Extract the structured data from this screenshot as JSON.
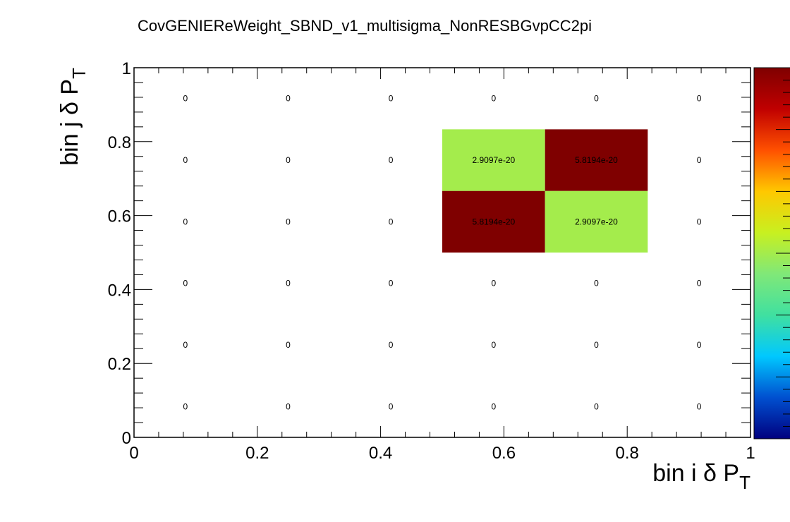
{
  "chart_data": {
    "type": "heatmap",
    "title": "CovGENIEReWeight_SBND_v1_multisigma_NonRESBGvpCC2pi",
    "xlabel": {
      "text": "bin i δ P",
      "sub": "T"
    },
    "ylabel": {
      "text": "bin j δ P",
      "sub": "T"
    },
    "xlim": [
      0,
      1
    ],
    "ylim": [
      0,
      1
    ],
    "x_ticks": [
      "0",
      "0.2",
      "0.4",
      "0.6",
      "0.8",
      "1"
    ],
    "y_ticks": [
      "0",
      "0.2",
      "0.4",
      "0.6",
      "0.8",
      "1"
    ],
    "x_bins": [
      0,
      0.1667,
      0.3333,
      0.5,
      0.6667,
      0.8333,
      1
    ],
    "y_bins": [
      0,
      0.1667,
      0.3333,
      0.5,
      0.6667,
      0.8333,
      1
    ],
    "values": [
      [
        "0",
        "0",
        "0",
        "0",
        "0",
        "0"
      ],
      [
        "0",
        "0",
        "0",
        "0",
        "0",
        "0"
      ],
      [
        "0",
        "0",
        "0",
        "0",
        "0",
        "0"
      ],
      [
        "0",
        "0",
        "0",
        "5.8194e-20",
        "2.9097e-20",
        "0"
      ],
      [
        "0",
        "0",
        "0",
        "2.9097e-20",
        "5.8194e-20",
        "0"
      ],
      [
        "0",
        "0",
        "0",
        "0",
        "0",
        "0"
      ]
    ],
    "z_range": [
      0,
      5.8194e-20
    ],
    "colorbar": true,
    "colorbar_stops": [
      "#00007f",
      "#0050d0",
      "#00c8ff",
      "#40e0a0",
      "#80e878",
      "#c8f020",
      "#ffc800",
      "#ff5000",
      "#c00000",
      "#7f0000"
    ]
  }
}
